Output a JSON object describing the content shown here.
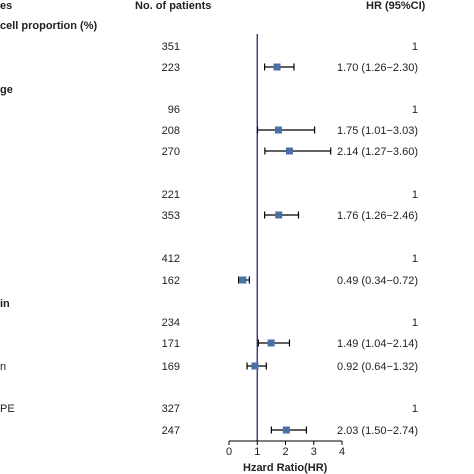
{
  "header": {
    "col1": "es",
    "col2": "No. of patients",
    "col3": "HR (95%CI)"
  },
  "chart_data": {
    "type": "forest",
    "xlabel": "Hzard Ratio(HR)",
    "xlim": [
      0,
      4
    ],
    "xticks": [
      "0",
      "1",
      "2",
      "3",
      "4"
    ],
    "reference_line": 1,
    "colors": {
      "marker": "#4a6fa5",
      "line": "#000000",
      "refline": "#2a2a6a"
    },
    "sections": [
      {
        "label": "cell proportion (%)"
      },
      {
        "label": "ge"
      },
      {
        "label": "in"
      }
    ],
    "rows": [
      {
        "label": "",
        "n": "351",
        "hr_text": "1",
        "hr": null,
        "lo": null,
        "hi": null
      },
      {
        "label": "",
        "n": "223",
        "hr_text": "1.70 (1.26−2.30)",
        "hr": 1.7,
        "lo": 1.26,
        "hi": 2.3
      },
      {
        "label": "",
        "n": "96",
        "hr_text": "1",
        "hr": null,
        "lo": null,
        "hi": null
      },
      {
        "label": "",
        "n": "208",
        "hr_text": "1.75 (1.01−3.03)",
        "hr": 1.75,
        "lo": 1.01,
        "hi": 3.03
      },
      {
        "label": "",
        "n": "270",
        "hr_text": "2.14 (1.27−3.60)",
        "hr": 2.14,
        "lo": 1.27,
        "hi": 3.6
      },
      {
        "label": "",
        "n": "221",
        "hr_text": "1",
        "hr": null,
        "lo": null,
        "hi": null
      },
      {
        "label": "",
        "n": "353",
        "hr_text": "1.76 (1.26−2.46)",
        "hr": 1.76,
        "lo": 1.26,
        "hi": 2.46
      },
      {
        "label": "",
        "n": "412",
        "hr_text": "1",
        "hr": null,
        "lo": null,
        "hi": null
      },
      {
        "label": "",
        "n": "162",
        "hr_text": "0.49 (0.34−0.72)",
        "hr": 0.49,
        "lo": 0.34,
        "hi": 0.72
      },
      {
        "label": "",
        "n": "234",
        "hr_text": "1",
        "hr": null,
        "lo": null,
        "hi": null
      },
      {
        "label": "",
        "n": "171",
        "hr_text": "1.49 (1.04−2.14)",
        "hr": 1.49,
        "lo": 1.04,
        "hi": 2.14
      },
      {
        "label": "n",
        "n": "169",
        "hr_text": "0.92 (0.64−1.32)",
        "hr": 0.92,
        "lo": 0.64,
        "hi": 1.32
      },
      {
        "label": "PE",
        "n": "327",
        "hr_text": "1",
        "hr": null,
        "lo": null,
        "hi": null
      },
      {
        "label": "",
        "n": "247",
        "hr_text": "2.03 (1.50−2.74)",
        "hr": 2.03,
        "lo": 1.5,
        "hi": 2.74
      }
    ]
  }
}
